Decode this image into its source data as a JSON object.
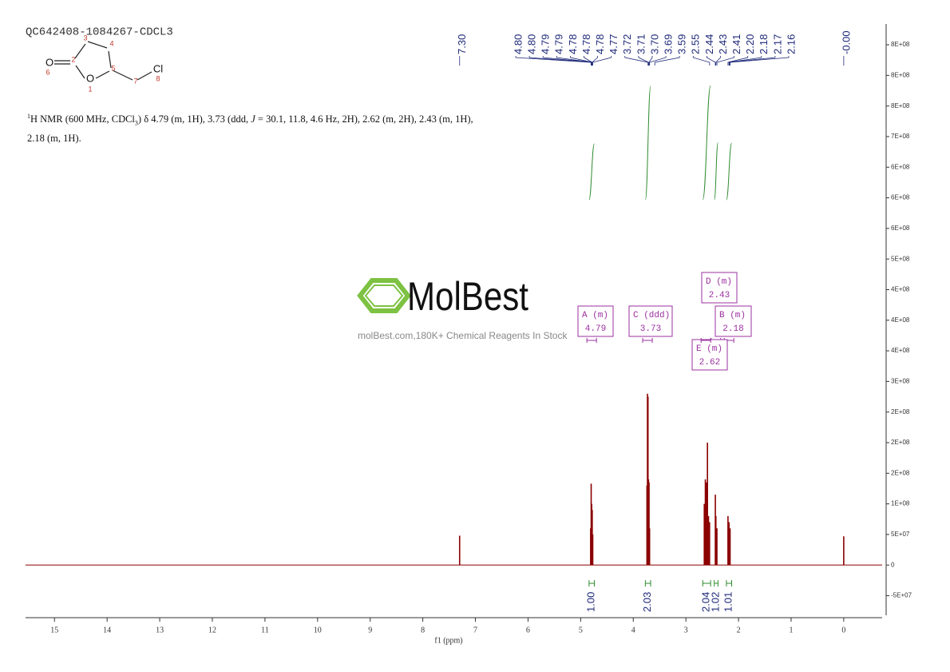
{
  "chart_data": {
    "type": "spectrum",
    "title": "QC642408-1084267-CDCL3",
    "x_label": "f1 (ppm)",
    "x": [
      7.3,
      4.81,
      4.8,
      4.79,
      4.78,
      4.77,
      3.74,
      3.73,
      3.72,
      3.71,
      3.7,
      3.69,
      2.65,
      2.63,
      2.61,
      2.59,
      2.57,
      2.55,
      2.44,
      2.43,
      2.41,
      2.2,
      2.18,
      2.16,
      0.0
    ],
    "values": [
      48000000,
      60000000,
      133000000,
      100000000,
      90000000,
      50000000,
      130000000,
      280000000,
      275000000,
      140000000,
      135000000,
      60000000,
      100000000,
      140000000,
      135000000,
      200000000,
      80000000,
      70000000,
      115000000,
      80000000,
      60000000,
      80000000,
      70000000,
      60000000,
      47000000
    ],
    "color": "#8b0000",
    "xlim": [
      15.55,
      -0.73
    ],
    "xticks": [
      15,
      14,
      13,
      12,
      11,
      10,
      9,
      8,
      7,
      6,
      5,
      4,
      3,
      2,
      1,
      0
    ],
    "ylim": [
      -82000000,
      884000000
    ],
    "yticks": [
      {
        "value": -50000000,
        "label": "-5E+07"
      },
      0,
      {
        "value": 50000000,
        "label": "5E+07"
      },
      {
        "value": 100000000,
        "label": "1E+08"
      },
      {
        "value": 150000000,
        "label": "2E+08"
      },
      {
        "value": 200000000,
        "label": "2E+08"
      },
      {
        "value": 250000000,
        "label": "2E+08"
      },
      {
        "value": 300000000,
        "label": "3E+08"
      },
      {
        "value": 350000000,
        "label": "4E+08"
      },
      {
        "value": 400000000,
        "label": "4E+08"
      },
      {
        "value": 450000000,
        "label": "4E+08"
      },
      {
        "value": 500000000,
        "label": "5E+08"
      },
      {
        "value": 550000000,
        "label": "6E+08"
      },
      {
        "value": 600000000,
        "label": "6E+08"
      },
      {
        "value": 650000000,
        "label": "6E+08"
      },
      {
        "value": 700000000,
        "label": "7E+08"
      },
      {
        "value": 750000000,
        "label": "8E+08"
      },
      {
        "value": 800000000,
        "label": "8E+08"
      },
      {
        "value": 850000000,
        "label": "8E+08"
      }
    ],
    "peak_labels": [
      "7.30",
      "4.80",
      "4.80",
      "4.79",
      "4.79",
      "4.78",
      "4.78",
      "4.78",
      "4.77",
      "3.72",
      "3.71",
      "3.70",
      "3.69",
      "3.59",
      "2.55",
      "2.44",
      "2.43",
      "2.41",
      "2.20",
      "2.18",
      "2.17",
      "2.16",
      "-0.00"
    ],
    "integrals": {
      "ranges": [
        [
          4.84,
          4.74
        ],
        [
          3.77,
          3.67
        ],
        [
          2.68,
          2.53
        ],
        [
          2.46,
          2.39
        ],
        [
          2.23,
          2.13
        ]
      ],
      "values": [
        1.0,
        2.03,
        2.04,
        1.02,
        1.01
      ],
      "value_labels": [
        "1.00",
        "2.03",
        "2.04",
        "1.02",
        "1.01"
      ]
    },
    "multiplets": [
      {
        "name": "A (m)",
        "shift": "4.79"
      },
      {
        "name": "C (ddd)",
        "shift": "3.73"
      },
      {
        "name": "D (m)",
        "shift": "2.43"
      },
      {
        "name": "B (m)",
        "shift": "2.18"
      },
      {
        "name": "E (m)",
        "shift": "2.62"
      }
    ]
  },
  "structure": {
    "atoms": [
      "O",
      "O",
      "Cl"
    ],
    "numbers": [
      "1",
      "2",
      "3",
      "4",
      "5",
      "6",
      "7",
      "8"
    ]
  },
  "description": [
    "1",
    "H NMR (600 MHz, CDCl",
    "3",
    ") δ 4.79 (m, 1H), 3.73 (ddd, ",
    "J",
    " = 30.1, 11.8, 4.6 Hz, 2H), 2.62 (m, 2H), 2.43 (m, 1H), 2.18 (m, 1H)."
  ],
  "watermark": {
    "brand": "MolBest",
    "tagline": "molBest.com,180K+ Chemical Reagents In Stock"
  }
}
